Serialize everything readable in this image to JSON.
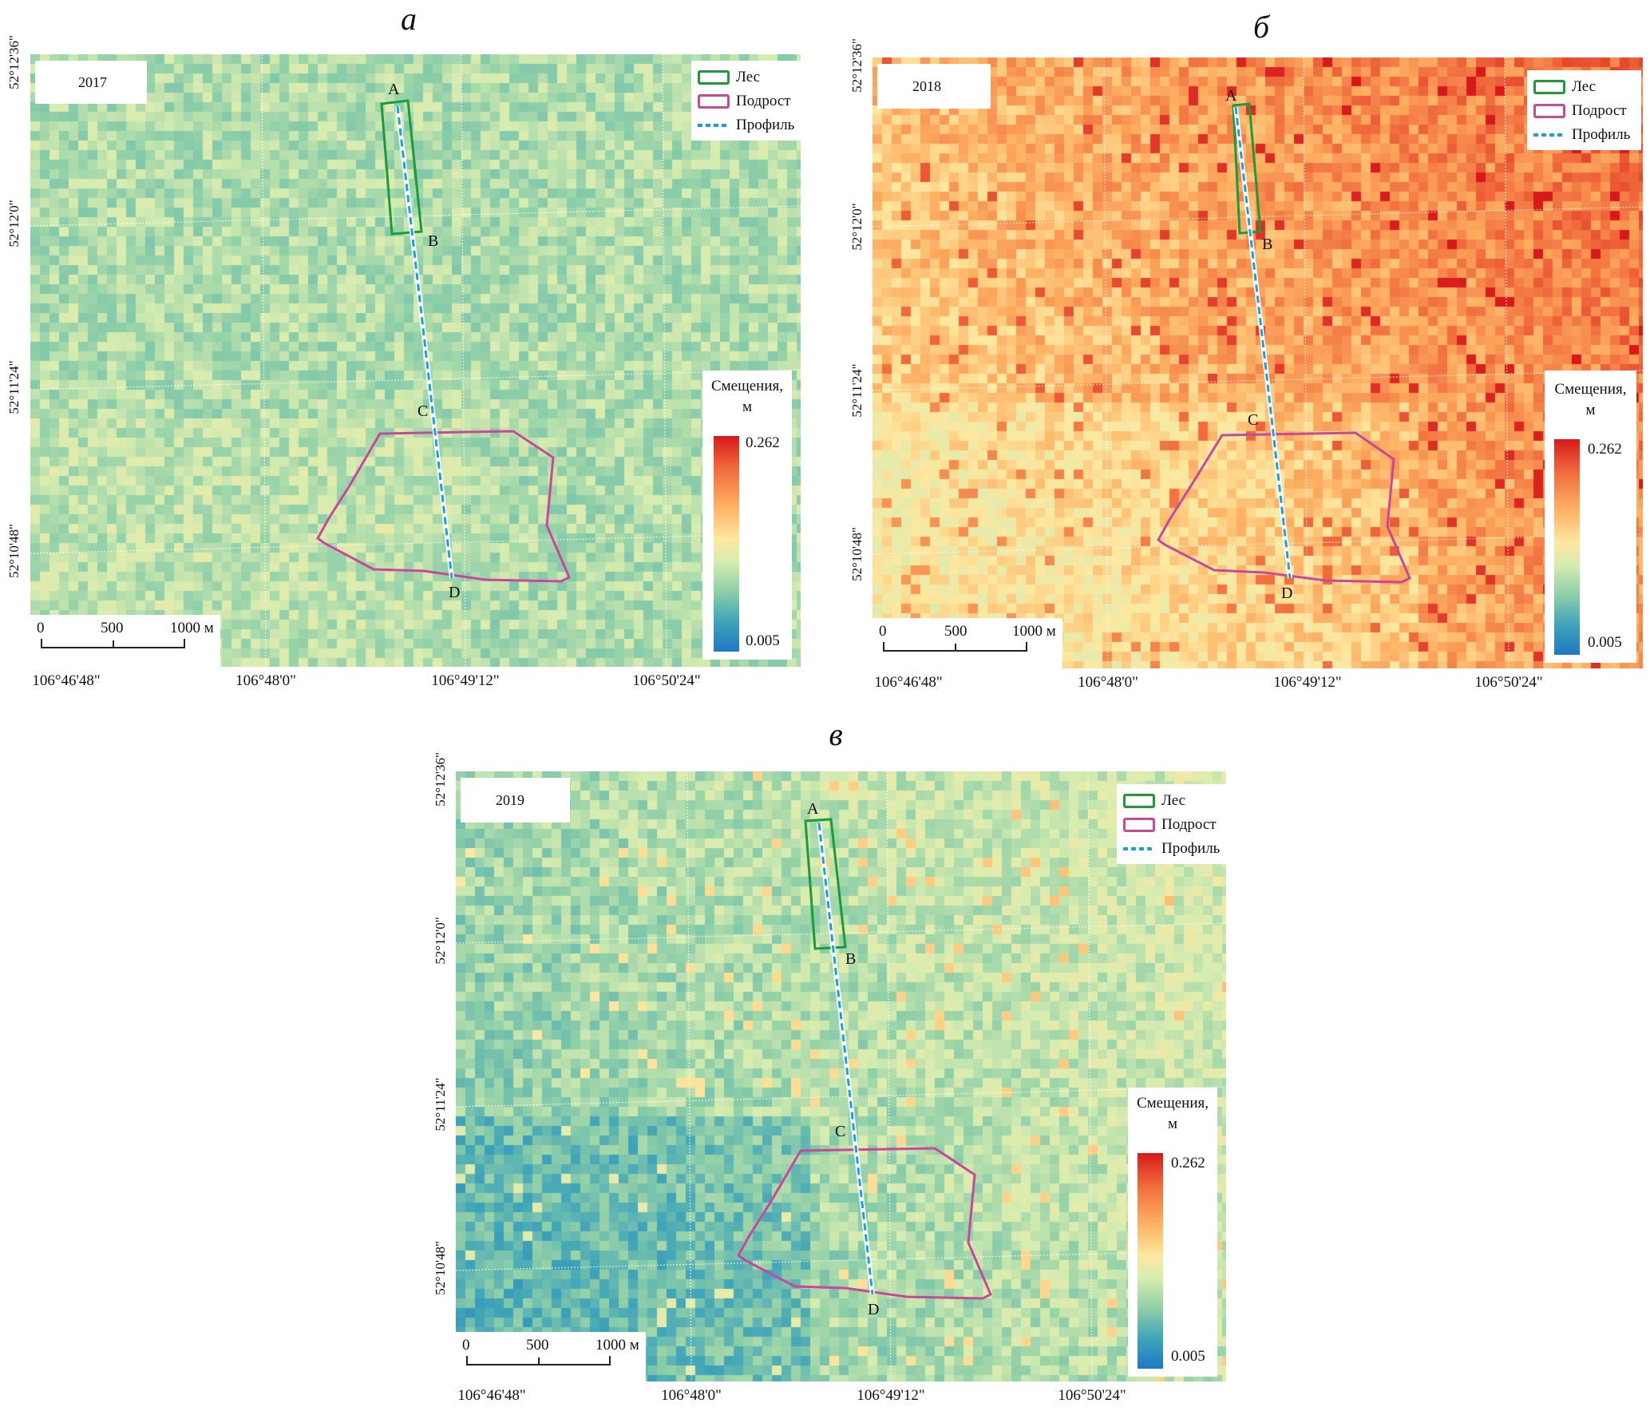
{
  "panels": [
    {
      "letter": "а",
      "year": "2017",
      "theme": "green",
      "point_labels": {
        "a": "A",
        "b": "B",
        "c": "C",
        "d": "D"
      }
    },
    {
      "letter": "б",
      "year": "2018",
      "theme": "orange",
      "point_labels": {
        "a": "A",
        "b": "B",
        "c": "C",
        "d": "D"
      }
    },
    {
      "letter": "в",
      "year": "2019",
      "theme": "blue",
      "point_labels": {
        "a": "A",
        "b": "B",
        "c": "C",
        "d": "D"
      }
    }
  ],
  "legend": {
    "forest": "Лес",
    "undergrowth": "Подрост",
    "profile": "Профиль",
    "forest_color": "#1f9a3a",
    "undergrowth_color": "#c8489a",
    "profile_color": "#1aa0e0"
  },
  "colorbar": {
    "title_line1": "Смещения,",
    "title_line2": "м",
    "max": "0.262",
    "min": "0.005",
    "colors": [
      "#d7191c",
      "#fdae61",
      "#fee8a0",
      "#8fcfa8",
      "#1f78c4"
    ]
  },
  "scalebar": {
    "t0": "0",
    "t1": "500",
    "t2": "1000 м"
  },
  "lon_ticks": [
    "106°46'48\"",
    "106°48'0\"",
    "106°49'12\"",
    "106°50'24\""
  ],
  "lat_ticks": [
    "52°12'36\"",
    "52°12'0\"",
    "52°11'24\"",
    "52°10'48\""
  ]
}
